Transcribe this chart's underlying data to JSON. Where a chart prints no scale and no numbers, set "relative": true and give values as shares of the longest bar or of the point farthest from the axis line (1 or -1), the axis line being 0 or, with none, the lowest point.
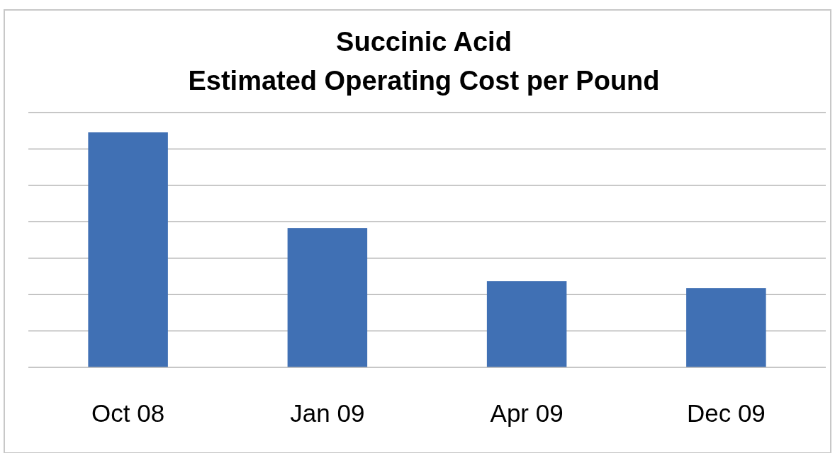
{
  "chart_data": {
    "type": "bar",
    "title": "Succinic Acid",
    "subtitle": "Estimated Operating Cost per Pound",
    "categories": [
      "Oct 08",
      "Jan 09",
      "Apr 09",
      "Dec 09"
    ],
    "values": [
      1,
      0.593,
      0.367,
      0.337
    ],
    "color": "#4070b4",
    "relative": true,
    "grid": true
  }
}
